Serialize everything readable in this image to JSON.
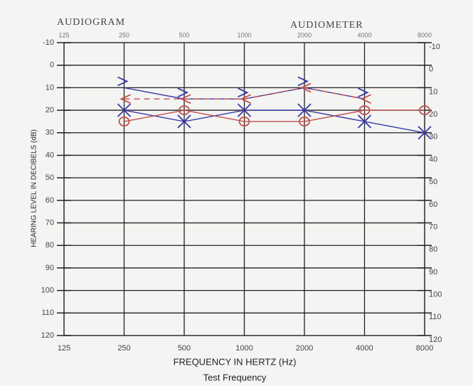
{
  "chart_data": {
    "type": "line",
    "title": "AUDIOGRAM",
    "subtitle": "AUDIOMETER",
    "x_label": "FREQUENCY IN HERTZ (Hz)",
    "x_sublabel": "Test Frequency",
    "y_label": "HEARING LEVEL IN DECIBELS (dB)",
    "x": [
      250,
      500,
      1000,
      2000,
      4000,
      8000
    ],
    "xscale": "log",
    "xlim": [
      125,
      8000
    ],
    "xticks": [
      125,
      250,
      500,
      1000,
      2000,
      4000,
      8000
    ],
    "ylim": [
      -10,
      120
    ],
    "y_inverted": true,
    "yticks": [
      -10,
      0,
      10,
      20,
      30,
      40,
      50,
      60,
      70,
      80,
      90,
      100,
      110,
      120
    ],
    "grid": true,
    "series": [
      {
        "color": "#3a3aa8",
        "marker": "x",
        "dashed": false,
        "values": [
          20,
          25,
          20,
          20,
          25,
          30
        ]
      },
      {
        "color": "#c0504d",
        "marker": "o",
        "dashed": false,
        "values": [
          25,
          20,
          25,
          25,
          20,
          20
        ]
      },
      {
        "color": "#3a3aa8",
        "marker": ">",
        "dashed": false,
        "values": [
          10,
          15,
          15,
          10,
          15,
          null
        ]
      },
      {
        "color": "#c0504d",
        "marker": "<",
        "dashed": true,
        "values": [
          15,
          15,
          15,
          10,
          15,
          null
        ]
      }
    ]
  }
}
